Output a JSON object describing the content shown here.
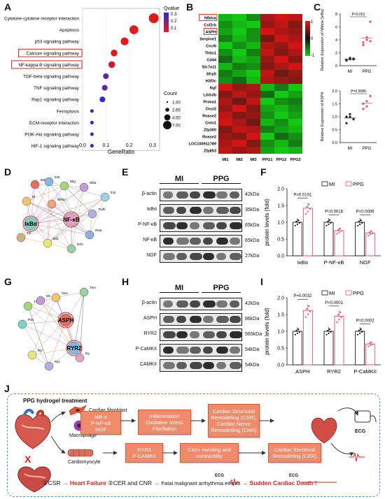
{
  "panels": {
    "A": "A",
    "B": "B",
    "C": "C",
    "D": "D",
    "E": "E",
    "F": "F",
    "G": "G",
    "H": "H",
    "I": "I",
    "J": "J"
  },
  "panelA": {
    "pathways": [
      "Cytokine-cytokine receptor interaction",
      "Apoptosis",
      "p53 signaling pathway",
      "Calcium signaling pathway",
      "NF-kappa B signaling pathway",
      "TGF-beta signaling pathway",
      "TNF signaling pathway",
      "Rap1 signaling pathway",
      "Ferroptosis",
      "ECM-receptor interaction",
      "PI3K-Akt signaling pathway",
      "HIF-1 signaling pathway"
    ],
    "gene_ratio": [
      0.305,
      0.22,
      0.18,
      0.135,
      0.125,
      0.1,
      0.095,
      0.085,
      0.04,
      0.04,
      0.04,
      0.04
    ],
    "count": [
      7,
      6,
      5,
      4,
      4,
      3,
      3,
      3,
      1,
      1,
      1,
      1
    ],
    "qvalue": [
      0.1,
      0.1,
      0.1,
      0.1,
      0.12,
      0.25,
      0.25,
      0.3,
      0.3,
      0.3,
      0.3,
      0.3
    ],
    "highlighted": [
      "Calcium signaling pathway",
      "NF-kappa B signaling pathway"
    ],
    "xlabel": "GeneRatio",
    "xticks": [
      "0.0",
      "0.1",
      "0.2",
      "0.3"
    ],
    "qvalue_title": "Qvalue",
    "qvalue_ticks": [
      "0.3",
      "0.2",
      "0.1"
    ],
    "count_title": "Count",
    "count_ticks": [
      "1.00",
      "2.65",
      "4.00",
      "7.00"
    ],
    "colors": {
      "high": "#e31a1c",
      "low": "#2b2bd6"
    }
  },
  "panelB": {
    "genes": [
      "Nfkbia",
      "Csf2rb",
      "ASPH",
      "Serpine1",
      "Cxcl6",
      "Thbs1",
      "Cd44",
      "Slc7a11",
      "Sfrp5",
      "H3f3c",
      "Ngf",
      "Lilrb3b",
      "Prima1",
      "Oxsl2",
      "Rnase2",
      "Cntn1",
      "Zfp300",
      "Rnase2",
      "LOC100911789",
      "Zfp853"
    ],
    "boxed": [
      "Nfkbia",
      "ASPH"
    ],
    "samples": [
      "MI1",
      "MI2",
      "MI3",
      "PPG1",
      "PPG2",
      "PPG3"
    ],
    "scale_ticks": [
      "1",
      "0",
      "-1"
    ]
  },
  "panelC": {
    "top": {
      "ylabel": "Relative Expression of Nfkbia (IκBα)",
      "pvalue": "P<0.001",
      "yticks": [
        "0",
        "2",
        "4",
        "6",
        "8"
      ],
      "groups": [
        "MI",
        "PPG"
      ],
      "mi": [
        0.9,
        1.0,
        1.1,
        0.8,
        1.2,
        1.0
      ],
      "ppg": [
        3.2,
        4.0,
        6.8,
        3.6,
        4.4,
        3.8
      ]
    },
    "bottom": {
      "ylabel": "Relative Expression of ASPH",
      "pvalue": "P=0.0086",
      "yticks": [
        "0.0",
        "0.5",
        "1.0",
        "1.5",
        "2.0"
      ],
      "groups": [
        "MI",
        "PPG"
      ],
      "mi": [
        1.0,
        1.1,
        0.9,
        0.75,
        1.0
      ],
      "ppg": [
        1.3,
        1.6,
        1.8,
        1.5,
        1.4
      ]
    }
  },
  "panelD": {
    "nodes": [
      "Bdkrg",
      "Ifeb",
      "Bkg",
      "Nfkb",
      "Bf",
      "IκBα",
      "NF-κB",
      "Trafk",
      "Ikrb",
      "Ikrf2",
      "Nfkb2",
      "Rela",
      "Tnf",
      "Il1b"
    ]
  },
  "panelE": {
    "groups": [
      "MI",
      "PPG"
    ],
    "rows": [
      {
        "label": "β-actin",
        "kda": "42kDa"
      },
      {
        "label": "IκBα",
        "kda": "35kDa"
      },
      {
        "label": "P-NF-κB",
        "kda": "65kDa"
      },
      {
        "label": "NF-κB",
        "kda": "65kDa"
      },
      {
        "label": "NGF",
        "kda": "27kDa"
      }
    ]
  },
  "panelF": {
    "ylabel": "protein levels (fold)",
    "legend": [
      "MI",
      "PPG"
    ],
    "categories": [
      "IκBα",
      "P-NF-κB",
      "NGF"
    ],
    "pvalues": [
      "P=0.0101",
      "P=0.0018",
      "P=0.0006"
    ],
    "yticks": [
      "0.0",
      "0.5",
      "1.0",
      "1.5",
      "2.0"
    ],
    "mi": [
      1.0,
      1.0,
      1.0
    ],
    "ppg": [
      1.42,
      0.75,
      0.68
    ]
  },
  "panelG": {
    "nodes": [
      "ASPH",
      "RYR2",
      "Tnnt",
      "Mn",
      "Clex",
      "P4h",
      "Eg",
      "Pp1",
      "Ryr",
      "Tlnrr"
    ]
  },
  "panelH": {
    "groups": [
      "MI",
      "PPG"
    ],
    "rows": [
      {
        "label": "β-actin",
        "kda": "42kDa"
      },
      {
        "label": "ASPH",
        "kda": "86kDa"
      },
      {
        "label": "RYR2",
        "kda": "565kDa"
      },
      {
        "label": "P-CaMKII",
        "kda": "54kDa"
      },
      {
        "label": "CAMKII",
        "kda": "54kDa"
      }
    ]
  },
  "panelI": {
    "ylabel": "protein levels (fold)",
    "legend": [
      "MI",
      "PPG"
    ],
    "categories": [
      "ASPH",
      "RYR2",
      "P-CaMKII"
    ],
    "pvalues": [
      "P=0.0032",
      "P<0.0001",
      "P=0.0002"
    ],
    "yticks": [
      "0.0",
      "0.5",
      "1.0",
      "1.5",
      "2.0"
    ],
    "mi": [
      1.0,
      1.0,
      1.0
    ],
    "ppg": [
      1.62,
      1.45,
      0.62
    ]
  },
  "panelJ": {
    "title": "PPG hydrogel treatment",
    "cells": [
      "Cardiac fibroblast",
      "Macrophage",
      "Cardiomyocyte"
    ],
    "box1": "IκB-α\nP-NF-κB\nNGF",
    "box2": "Inflammation\nOxidative stress\nFibrillation",
    "box3": "Cardiac Structural Remodeling (CSR), Cardiac Nerve Remodelling (CNR)",
    "box4": "RYR2\nP-CAMKII",
    "box5": "Ca2+ handing and contractility",
    "box6": "Cardiac Electrical Remodeling (CER)",
    "ecg": "ECG",
    "x_mark": "X",
    "bottom": {
      "s1": "①CSR",
      "arrow1": "→",
      "hf": "Heart Failure",
      "s2": "②CER and CNR",
      "arrow2": "→",
      "fatal": "Fatal malignant arrhythmia events",
      "arrow3": "→",
      "scd": "Sudden Cardiac Death !",
      "ecg1": "ECG",
      "ecg2": "ECG"
    }
  }
}
